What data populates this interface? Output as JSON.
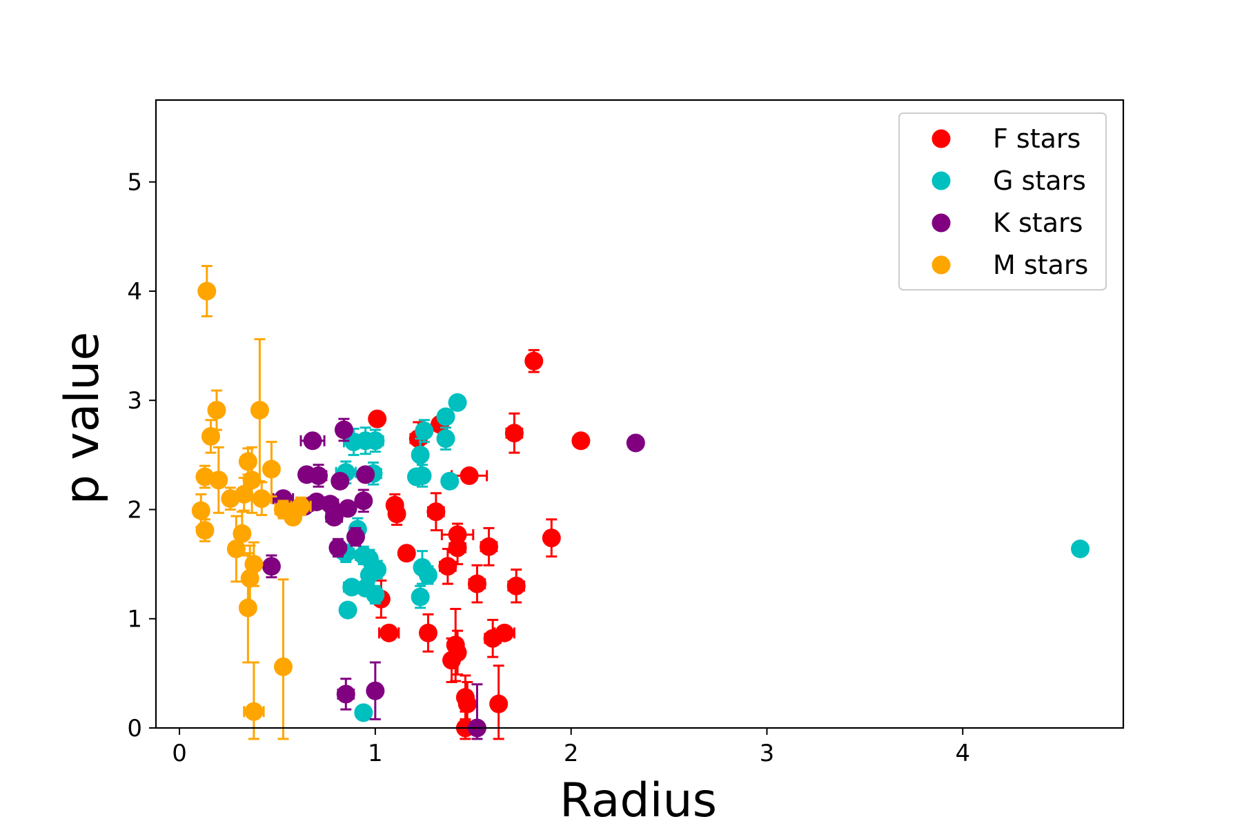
{
  "chart_data": {
    "type": "scatter",
    "title": "",
    "xlabel": "Radius",
    "ylabel": "p value",
    "xlim": [
      -0.12,
      4.82
    ],
    "ylim": [
      0,
      5.75
    ],
    "xticks": [
      0,
      1,
      2,
      3,
      4
    ],
    "yticks": [
      0,
      1,
      2,
      3,
      4,
      5
    ],
    "grid": false,
    "legend_position": "top-right",
    "series": [
      {
        "name": "F stars",
        "color": "#ff0000",
        "points": [
          {
            "x": 1.01,
            "y": 2.83,
            "xerr": 0.03,
            "yerr": 0.05
          },
          {
            "x": 1.81,
            "y": 3.36,
            "xerr": 0.03,
            "yerr": 0.1
          },
          {
            "x": 2.05,
            "y": 2.63,
            "xerr": 0.03,
            "yerr": 0.05
          },
          {
            "x": 1.71,
            "y": 2.7,
            "xerr": 0.04,
            "yerr": 0.18
          },
          {
            "x": 1.22,
            "y": 2.65,
            "xerr": 0.04,
            "yerr": 0.15
          },
          {
            "x": 1.33,
            "y": 2.78,
            "xerr": 0.03,
            "yerr": 0.06
          },
          {
            "x": 1.48,
            "y": 2.31,
            "xerr": 0.09,
            "yerr": 0.05
          },
          {
            "x": 1.1,
            "y": 2.04,
            "xerr": 0.03,
            "yerr": 0.1
          },
          {
            "x": 1.11,
            "y": 1.96,
            "xerr": 0.03,
            "yerr": 0.1
          },
          {
            "x": 1.31,
            "y": 1.98,
            "xerr": 0.04,
            "yerr": 0.17
          },
          {
            "x": 1.42,
            "y": 1.77,
            "xerr": 0.08,
            "yerr": 0.1
          },
          {
            "x": 1.42,
            "y": 1.65,
            "xerr": 0.04,
            "yerr": 0.15
          },
          {
            "x": 1.58,
            "y": 1.66,
            "xerr": 0.04,
            "yerr": 0.17
          },
          {
            "x": 1.9,
            "y": 1.74,
            "xerr": 0.03,
            "yerr": 0.17
          },
          {
            "x": 1.16,
            "y": 1.6,
            "xerr": 0.03,
            "yerr": 0.06
          },
          {
            "x": 1.37,
            "y": 1.48,
            "xerr": 0.04,
            "yerr": 0.16
          },
          {
            "x": 1.52,
            "y": 1.32,
            "xerr": 0.04,
            "yerr": 0.17
          },
          {
            "x": 1.72,
            "y": 1.3,
            "xerr": 0.04,
            "yerr": 0.15
          },
          {
            "x": 1.03,
            "y": 1.18,
            "xerr": 0.03,
            "yerr": 0.17
          },
          {
            "x": 1.07,
            "y": 0.87,
            "xerr": 0.05,
            "yerr": 0.06
          },
          {
            "x": 1.27,
            "y": 0.87,
            "xerr": 0.03,
            "yerr": 0.17
          },
          {
            "x": 1.41,
            "y": 0.76,
            "xerr": 0.03,
            "yerr": 0.33
          },
          {
            "x": 1.6,
            "y": 0.82,
            "xerr": 0.04,
            "yerr": 0.17
          },
          {
            "x": 1.66,
            "y": 0.87,
            "xerr": 0.05,
            "yerr": 0.06
          },
          {
            "x": 1.39,
            "y": 0.62,
            "xerr": 0.03,
            "yerr": 0.2
          },
          {
            "x": 1.42,
            "y": 0.69,
            "xerr": 0.03,
            "yerr": 0.2
          },
          {
            "x": 1.46,
            "y": 0.28,
            "xerr": 0.03,
            "yerr": 0.2
          },
          {
            "x": 1.47,
            "y": 0.22,
            "xerr": 0.03,
            "yerr": 0.2
          },
          {
            "x": 1.63,
            "y": 0.22,
            "xerr": 0.03,
            "yerr": 0.35
          },
          {
            "x": 1.46,
            "y": 0.0,
            "xerr": 0.03,
            "yerr": 0.15
          }
        ]
      },
      {
        "name": "G stars",
        "color": "#00bfbf",
        "points": [
          {
            "x": 1.42,
            "y": 2.98,
            "xerr": 0.03,
            "yerr": 0.05
          },
          {
            "x": 1.36,
            "y": 2.85,
            "xerr": 0.03,
            "yerr": 0.06
          },
          {
            "x": 1.36,
            "y": 2.65,
            "xerr": 0.03,
            "yerr": 0.1
          },
          {
            "x": 1.25,
            "y": 2.72,
            "xerr": 0.03,
            "yerr": 0.1
          },
          {
            "x": 0.95,
            "y": 2.63,
            "xerr": 0.05,
            "yerr": 0.12
          },
          {
            "x": 1.0,
            "y": 2.63,
            "xerr": 0.04,
            "yerr": 0.1
          },
          {
            "x": 0.89,
            "y": 2.62,
            "xerr": 0.05,
            "yerr": 0.12
          },
          {
            "x": 1.23,
            "y": 2.5,
            "xerr": 0.03,
            "yerr": 0.15
          },
          {
            "x": 0.85,
            "y": 2.34,
            "xerr": 0.05,
            "yerr": 0.1
          },
          {
            "x": 0.99,
            "y": 2.33,
            "xerr": 0.04,
            "yerr": 0.1
          },
          {
            "x": 1.21,
            "y": 2.3,
            "xerr": 0.03,
            "yerr": 0.06
          },
          {
            "x": 1.24,
            "y": 2.31,
            "xerr": 0.03,
            "yerr": 0.1
          },
          {
            "x": 1.38,
            "y": 2.26,
            "xerr": 0.03,
            "yerr": 0.06
          },
          {
            "x": 0.91,
            "y": 1.82,
            "xerr": 0.03,
            "yerr": 0.1
          },
          {
            "x": 0.85,
            "y": 1.6,
            "xerr": 0.04,
            "yerr": 0.08
          },
          {
            "x": 0.94,
            "y": 1.58,
            "xerr": 0.04,
            "yerr": 0.08
          },
          {
            "x": 0.97,
            "y": 1.55,
            "xerr": 0.03,
            "yerr": 0.08
          },
          {
            "x": 1.01,
            "y": 1.45,
            "xerr": 0.03,
            "yerr": 0.08
          },
          {
            "x": 1.24,
            "y": 1.47,
            "xerr": 0.03,
            "yerr": 0.15
          },
          {
            "x": 1.27,
            "y": 1.4,
            "xerr": 0.03,
            "yerr": 0.08
          },
          {
            "x": 0.97,
            "y": 1.4,
            "xerr": 0.03,
            "yerr": 0.08
          },
          {
            "x": 0.88,
            "y": 1.29,
            "xerr": 0.04,
            "yerr": 0.06
          },
          {
            "x": 0.95,
            "y": 1.28,
            "xerr": 0.04,
            "yerr": 0.06
          },
          {
            "x": 1.0,
            "y": 1.22,
            "xerr": 0.03,
            "yerr": 0.08
          },
          {
            "x": 1.23,
            "y": 1.2,
            "xerr": 0.03,
            "yerr": 0.1
          },
          {
            "x": 0.86,
            "y": 1.08,
            "xerr": 0.03,
            "yerr": 0.06
          },
          {
            "x": 0.94,
            "y": 0.14,
            "xerr": 0.03,
            "yerr": 0.06
          },
          {
            "x": 4.6,
            "y": 1.64,
            "xerr": 0.02,
            "yerr": 0.04
          }
        ]
      },
      {
        "name": "K stars",
        "color": "#800080",
        "points": [
          {
            "x": 0.68,
            "y": 2.63,
            "xerr": 0.06,
            "yerr": 0.04
          },
          {
            "x": 0.84,
            "y": 2.73,
            "xerr": 0.03,
            "yerr": 0.1
          },
          {
            "x": 2.33,
            "y": 2.61,
            "xerr": 0.03,
            "yerr": 0.05
          },
          {
            "x": 0.65,
            "y": 2.32,
            "xerr": 0.03,
            "yerr": 0.06
          },
          {
            "x": 0.71,
            "y": 2.31,
            "xerr": 0.04,
            "yerr": 0.1
          },
          {
            "x": 0.82,
            "y": 2.26,
            "xerr": 0.03,
            "yerr": 0.06
          },
          {
            "x": 0.95,
            "y": 2.32,
            "xerr": 0.03,
            "yerr": 0.06
          },
          {
            "x": 0.53,
            "y": 2.1,
            "xerr": 0.05,
            "yerr": 0.06
          },
          {
            "x": 0.64,
            "y": 2.03,
            "xerr": 0.04,
            "yerr": 0.06
          },
          {
            "x": 0.7,
            "y": 2.07,
            "xerr": 0.04,
            "yerr": 0.06
          },
          {
            "x": 0.77,
            "y": 2.05,
            "xerr": 0.04,
            "yerr": 0.06
          },
          {
            "x": 0.86,
            "y": 2.01,
            "xerr": 0.03,
            "yerr": 0.06
          },
          {
            "x": 0.94,
            "y": 2.08,
            "xerr": 0.03,
            "yerr": 0.1
          },
          {
            "x": 0.79,
            "y": 1.93,
            "xerr": 0.04,
            "yerr": 0.06
          },
          {
            "x": 0.9,
            "y": 1.75,
            "xerr": 0.03,
            "yerr": 0.08
          },
          {
            "x": 0.81,
            "y": 1.65,
            "xerr": 0.03,
            "yerr": 0.08
          },
          {
            "x": 0.47,
            "y": 1.48,
            "xerr": 0.03,
            "yerr": 0.1
          },
          {
            "x": 0.85,
            "y": 0.31,
            "xerr": 0.04,
            "yerr": 0.14
          },
          {
            "x": 1.0,
            "y": 0.34,
            "xerr": 0.03,
            "yerr": 0.26
          },
          {
            "x": 1.52,
            "y": 0.0,
            "xerr": 0.03,
            "yerr": 0.4
          }
        ]
      },
      {
        "name": "M stars",
        "color": "#ffa500",
        "points": [
          {
            "x": 0.14,
            "y": 4.0,
            "xerr": 0.03,
            "yerr": 0.23
          },
          {
            "x": 0.19,
            "y": 2.91,
            "xerr": 0.03,
            "yerr": 0.18
          },
          {
            "x": 0.41,
            "y": 2.91,
            "xerr": 0.03,
            "yerr": 0.65
          },
          {
            "x": 0.16,
            "y": 2.67,
            "xerr": 0.03,
            "yerr": 0.15
          },
          {
            "x": 0.35,
            "y": 2.44,
            "xerr": 0.03,
            "yerr": 0.12
          },
          {
            "x": 0.47,
            "y": 2.37,
            "xerr": 0.03,
            "yerr": 0.25
          },
          {
            "x": 0.13,
            "y": 2.3,
            "xerr": 0.03,
            "yerr": 0.1
          },
          {
            "x": 0.2,
            "y": 2.27,
            "xerr": 0.03,
            "yerr": 0.3
          },
          {
            "x": 0.37,
            "y": 2.27,
            "xerr": 0.03,
            "yerr": 0.3
          },
          {
            "x": 0.26,
            "y": 2.1,
            "xerr": 0.03,
            "yerr": 0.1
          },
          {
            "x": 0.33,
            "y": 2.14,
            "xerr": 0.03,
            "yerr": 0.15
          },
          {
            "x": 0.42,
            "y": 2.1,
            "xerr": 0.05,
            "yerr": 0.15
          },
          {
            "x": 0.53,
            "y": 2.0,
            "xerr": 0.04,
            "yerr": 0.08
          },
          {
            "x": 0.58,
            "y": 1.93,
            "xerr": 0.03,
            "yerr": 0.06
          },
          {
            "x": 0.62,
            "y": 2.03,
            "xerr": 0.05,
            "yerr": 0.08
          },
          {
            "x": 0.11,
            "y": 1.99,
            "xerr": 0.03,
            "yerr": 0.15
          },
          {
            "x": 0.13,
            "y": 1.81,
            "xerr": 0.03,
            "yerr": 0.1
          },
          {
            "x": 0.32,
            "y": 1.78,
            "xerr": 0.03,
            "yerr": 0.2
          },
          {
            "x": 0.29,
            "y": 1.64,
            "xerr": 0.03,
            "yerr": 0.3
          },
          {
            "x": 0.38,
            "y": 1.5,
            "xerr": 0.03,
            "yerr": 0.2
          },
          {
            "x": 0.36,
            "y": 1.37,
            "xerr": 0.03,
            "yerr": 0.3
          },
          {
            "x": 0.35,
            "y": 1.1,
            "xerr": 0.02,
            "yerr": 0.5
          },
          {
            "x": 0.53,
            "y": 0.56,
            "xerr": 0.02,
            "yerr": 0.8
          },
          {
            "x": 0.38,
            "y": 0.15,
            "xerr": 0.05,
            "yerr": 0.45
          }
        ]
      }
    ]
  }
}
